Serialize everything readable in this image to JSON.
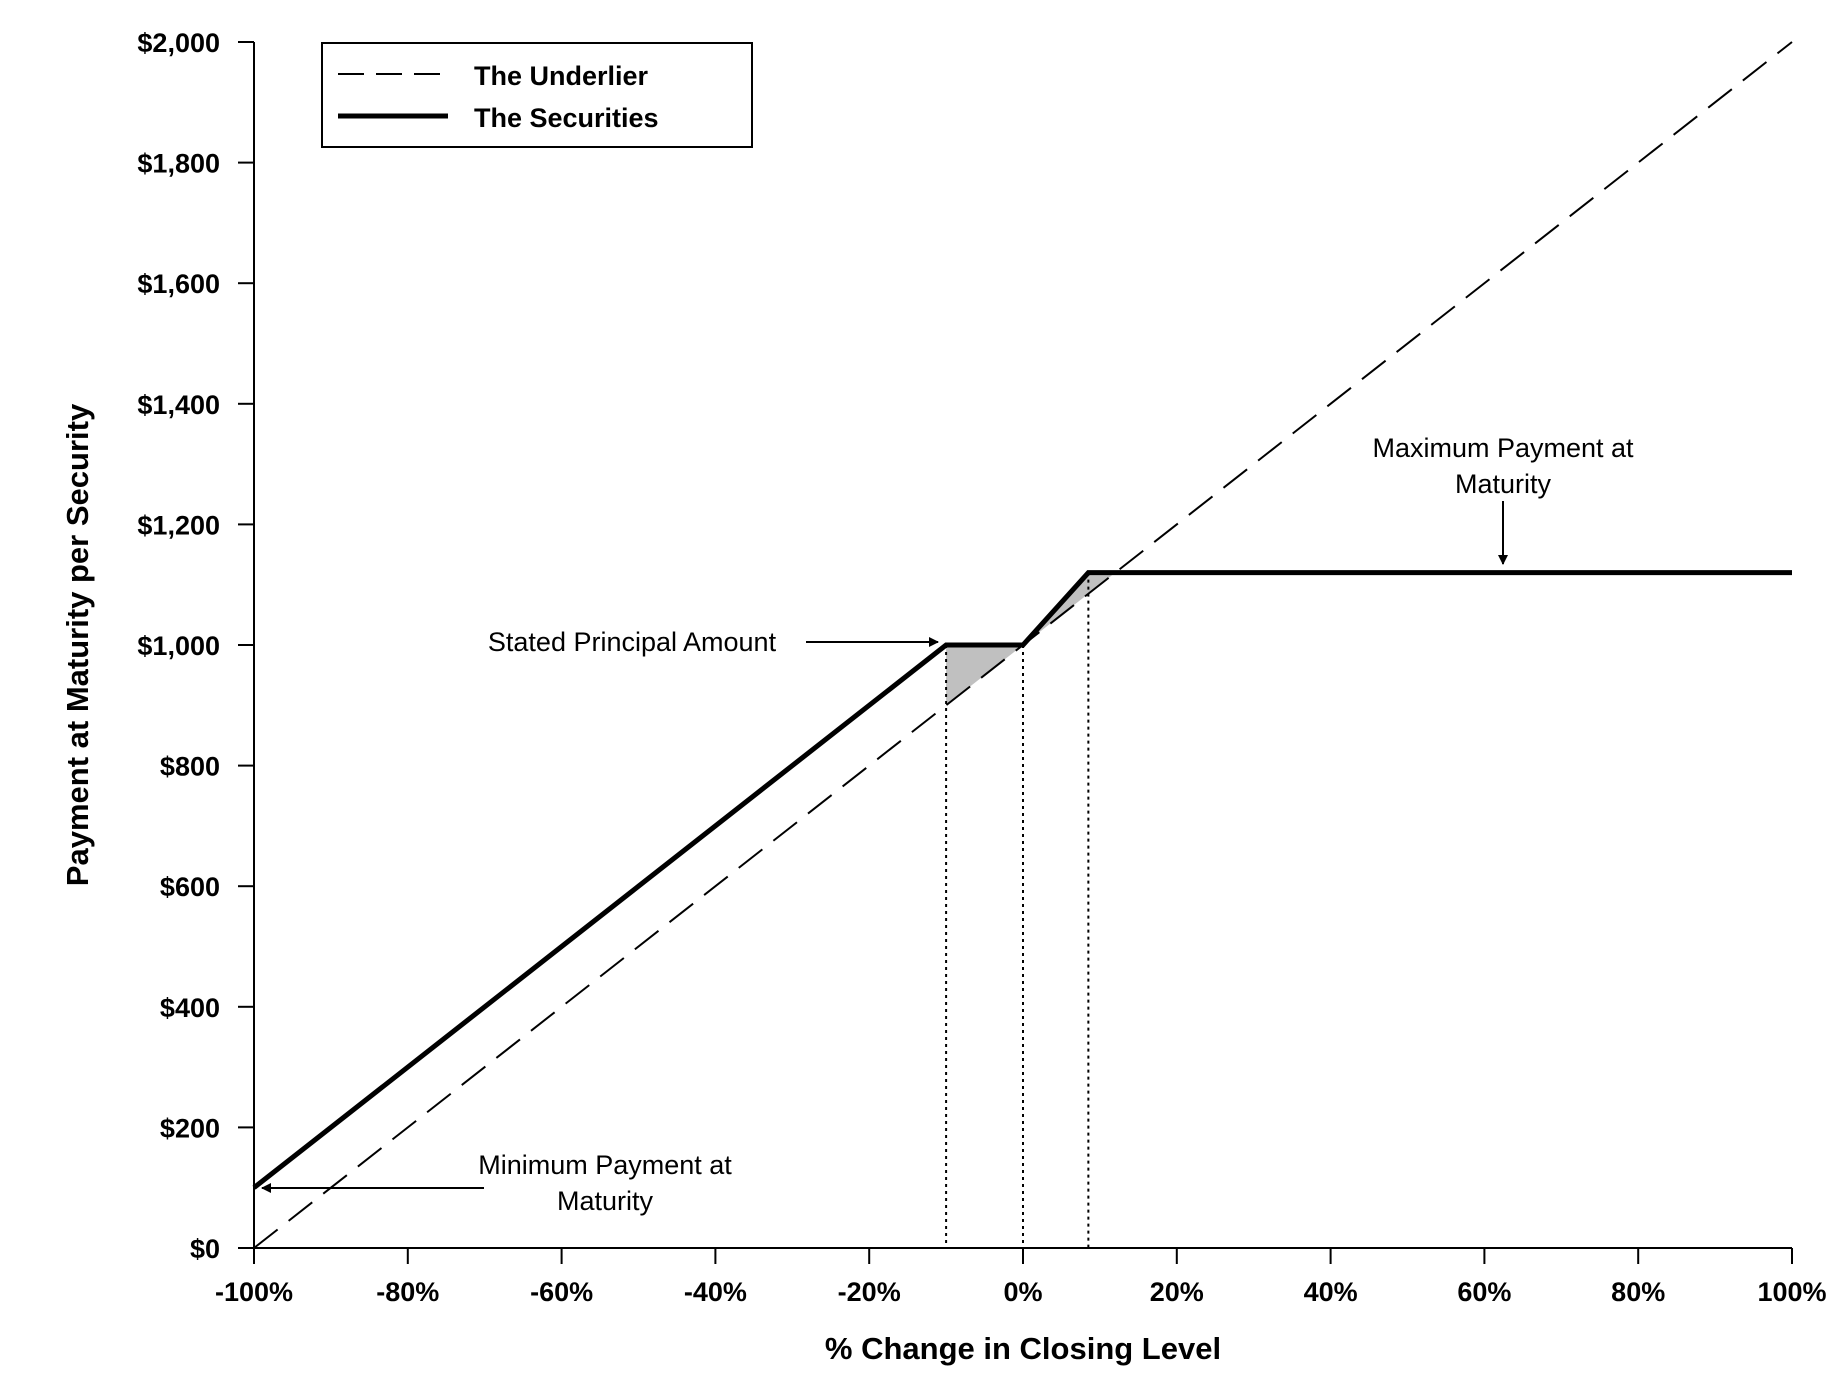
{
  "chart_data": {
    "type": "line",
    "title": "",
    "xlabel": "% Change in Closing Level",
    "ylabel": "Payment at Maturity per Security",
    "xlim": [
      -100,
      100
    ],
    "ylim": [
      0,
      2000
    ],
    "x_ticks": [
      -100,
      -80,
      -60,
      -40,
      -20,
      0,
      20,
      40,
      60,
      80,
      100
    ],
    "x_tick_labels": [
      "-100%",
      "-80%",
      "-60%",
      "-40%",
      "-20%",
      "0%",
      "20%",
      "40%",
      "60%",
      "80%",
      "100%"
    ],
    "y_ticks": [
      0,
      200,
      400,
      600,
      800,
      1000,
      1200,
      1400,
      1600,
      1800,
      2000
    ],
    "y_tick_labels": [
      "$0",
      "$200",
      "$400",
      "$600",
      "$800",
      "$1,000",
      "$1,200",
      "$1,400",
      "$1,600",
      "$1,800",
      "$2,000"
    ],
    "grid": false,
    "legend_position": "top-left",
    "series": [
      {
        "name": "The Underlier",
        "style": "dashed",
        "color": "#000000",
        "x": [
          -100,
          100
        ],
        "y": [
          0,
          2000
        ]
      },
      {
        "name": "The Securities",
        "style": "solid-thick",
        "color": "#000000",
        "x": [
          -100,
          -10,
          0,
          8.5,
          100
        ],
        "y": [
          100,
          1000,
          1000,
          1120,
          1120
        ]
      }
    ],
    "shaded_regions": [
      {
        "color": "#c0c0c0",
        "x": [
          -10,
          0,
          -10
        ],
        "y": [
          1000,
          1000,
          900
        ]
      },
      {
        "color": "#c0c0c0",
        "x": [
          0,
          8.5,
          12
        ],
        "y": [
          1000,
          1120,
          1120
        ]
      }
    ],
    "reference_lines": [
      {
        "style": "dotted",
        "x": -10,
        "y_top": 1000
      },
      {
        "style": "dotted",
        "x": 0,
        "y_top": 1000
      },
      {
        "style": "dotted",
        "x": 8.5,
        "y_top": 1120
      }
    ],
    "annotations": [
      {
        "lines": [
          "Stated Principal Amount"
        ],
        "points_to": {
          "x": -10,
          "y": 1000
        },
        "direction": "right"
      },
      {
        "lines": [
          "Maximum Payment at",
          "Maturity"
        ],
        "points_to": {
          "x": 62,
          "y": 1120
        },
        "direction": "down"
      },
      {
        "lines": [
          "Minimum Payment at",
          "Maturity"
        ],
        "points_to": {
          "x": -100,
          "y": 100
        },
        "direction": "left"
      }
    ]
  }
}
